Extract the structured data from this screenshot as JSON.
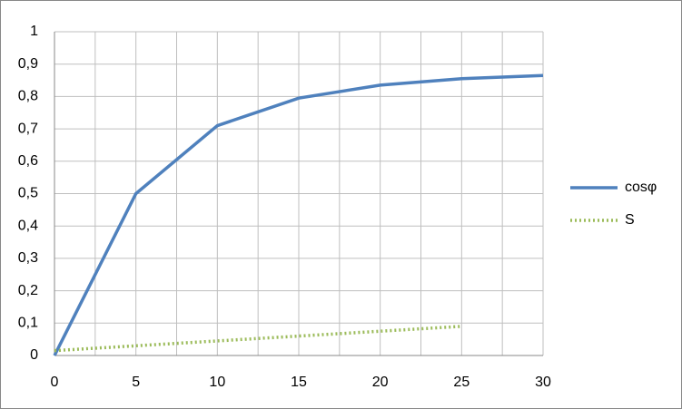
{
  "chart_data": {
    "type": "line",
    "x": [
      0,
      5,
      10,
      15,
      20,
      25,
      30
    ],
    "series": [
      {
        "name": "cosφ",
        "color": "#4f81bd",
        "style": "solid",
        "values": [
          0,
          0.5,
          0.71,
          0.795,
          0.835,
          0.855,
          0.865
        ]
      },
      {
        "name": "S",
        "color": "#9bbb59",
        "style": "dotted",
        "values": [
          0.015,
          0.03,
          0.045,
          0.06,
          0.075,
          0.09,
          null
        ]
      }
    ],
    "xlim": [
      0,
      30
    ],
    "xticks": [
      0,
      5,
      10,
      15,
      20,
      25,
      30
    ],
    "ylim": [
      0,
      1
    ],
    "yticks": [
      0,
      {
        "value": 0.1,
        "label": "0,1"
      },
      {
        "value": 0.2,
        "label": "0,2"
      },
      {
        "value": 0.3,
        "label": "0,3"
      },
      {
        "value": 0.4,
        "label": "0,4"
      },
      {
        "value": 0.5,
        "label": "0,5"
      },
      {
        "value": 0.6,
        "label": "0,6"
      },
      {
        "value": 0.7,
        "label": "0,7"
      },
      {
        "value": 0.8,
        "label": "0,8"
      },
      {
        "value": 0.9,
        "label": "0,9"
      },
      1
    ],
    "grid": true,
    "legend": "right"
  }
}
